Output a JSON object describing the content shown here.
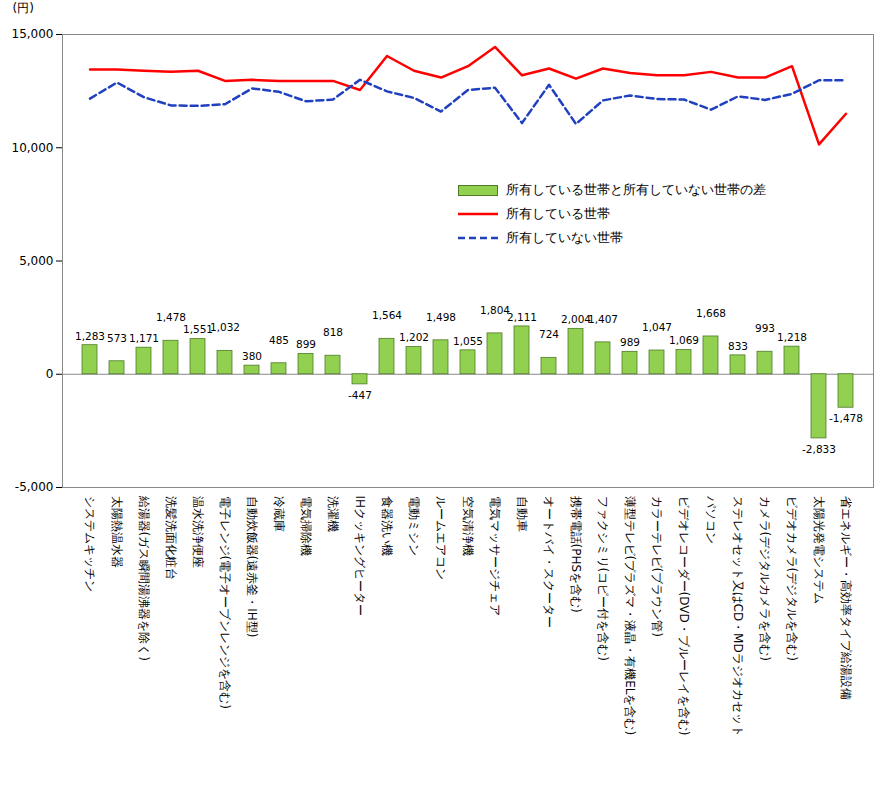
{
  "chart_data": {
    "type": "bar",
    "y_label": "(円)",
    "categories": [
      "システムキッチン",
      "太陽熱温水器",
      "給湯器(ガス瞬間湯沸器を除く)",
      "洗髪洗面化粧台",
      "温水洗浄便座",
      "電子レンジ(電子オーブンレンジを含む)",
      "自動炊飯器(遠赤釜・IH型)",
      "冷蔵庫",
      "電気掃除機",
      "洗濯機",
      "IHクッキングヒーター",
      "食器洗い機",
      "電動ミシン",
      "ルームエアコン",
      "空気清浄機",
      "電気マッサージチェア",
      "自動車",
      "オートバイ・スクーター",
      "携帯電話(PHSを含む)",
      "ファクシミリ(コピー付を含む)",
      "薄型テレビ(プラズマ・液晶・有機ELを含む)",
      "カラーテレビ(ブラウン管)",
      "ビデオレコーダー(DVD・ブルーレイを含む)",
      "パソコン",
      "ステレオセット又はCD・MDラジオカセット",
      "カメラ(デジタルカメラを含む)",
      "ビデオカメラ(デジタルを含む)",
      "太陽光発電システム",
      "省エネルギー・高効率タイプ給湯設備"
    ],
    "series": [
      {
        "name": "所有している世帯と所有していない世帯の差",
        "type": "bar",
        "color": "#92d050",
        "data_labels": true,
        "values": [
          1283,
          573,
          1171,
          1478,
          1551,
          1032,
          380,
          485,
          899,
          818,
          -447,
          1564,
          1202,
          1498,
          1055,
          1804,
          2111,
          724,
          2004,
          1407,
          989,
          1047,
          1069,
          1668,
          833,
          993,
          1218,
          -2833,
          -1478
        ],
        "value_labels": [
          "1,283",
          "573",
          "1,171",
          "1,478",
          "1,551",
          "1,032",
          "380",
          "485",
          "899",
          "818",
          "-447",
          "1,564",
          "1,202",
          "1,498",
          "1,055",
          "1,804",
          "2,111",
          "724",
          "2,004",
          "1,407",
          "989",
          "1,047",
          "1,069",
          "1,668",
          "833",
          "993",
          "1,218",
          "-2,833",
          "-1,478"
        ]
      },
      {
        "name": "所有している世帯",
        "type": "line",
        "color": "#ff0000",
        "line_style": "solid",
        "values": [
          13450,
          13450,
          13400,
          13350,
          13400,
          12950,
          13000,
          12950,
          12950,
          12950,
          12550,
          14050,
          13400,
          13100,
          13600,
          14450,
          13200,
          13500,
          13050,
          13500,
          13300,
          13200,
          13200,
          13350,
          13100,
          13100,
          13600,
          10150,
          11500
        ]
      },
      {
        "name": "所有していない世帯",
        "type": "line",
        "color": "#2040c0",
        "line_style": "dashed",
        "values": [
          12170,
          12880,
          12230,
          11870,
          11850,
          11920,
          12620,
          12470,
          12050,
          12130,
          13000,
          12490,
          12200,
          11600,
          12550,
          12650,
          11090,
          12780,
          11050,
          12090,
          12310,
          12150,
          12130,
          11680,
          12270,
          12110,
          12380,
          12980,
          12980
        ]
      }
    ],
    "ylim": [
      -5000,
      15000
    ],
    "yticks": [
      {
        "value": -5000,
        "label": "-5,000"
      },
      0,
      {
        "value": 5000,
        "label": "5,000"
      },
      {
        "value": 10000,
        "label": "10,000"
      },
      {
        "value": 15000,
        "label": "15,000"
      }
    ],
    "grid": false,
    "legend": "right"
  }
}
